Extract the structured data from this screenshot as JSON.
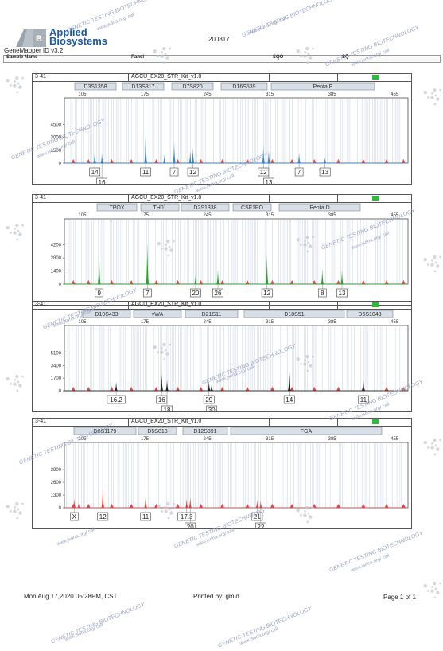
{
  "header": {
    "brand_line1": "Applied",
    "brand_line2": "Biosystems",
    "run_id": "200817",
    "software": "GeneMapper ID v3.2",
    "col_sample_name": "Sample Name",
    "col_panel": "Panel",
    "col_sqo": "SQO",
    "col_sq": "SQ"
  },
  "footer": {
    "date": "Mon Aug 17,2020 05:28PM, CST",
    "printed_by": "Printed by: gmid",
    "page": "Page 1 of 1"
  },
  "watermark": {
    "line1": "GENETIC TESTING BIOTECHNOLOGY",
    "line2": "www.jsdna.org/ call"
  },
  "colors": {
    "blue": "#3a87c8",
    "green": "#2aa52a",
    "black": "#222222",
    "red": "#e6463c",
    "qc_green": "#2bbd3a"
  },
  "chart_data": [
    {
      "type": "line",
      "dye": "blue",
      "sample": "3-41",
      "kit": "AGCU_EX20_STR_Kit_v1.0",
      "x_ticks": [
        "105",
        "175",
        "245",
        "315",
        "385",
        "455"
      ],
      "y_ticks": [
        "4500",
        "3000",
        "1500",
        "0"
      ],
      "ylim": [
        0,
        5000
      ],
      "xlim": [
        85,
        470
      ],
      "loci": [
        "D3S1358",
        "D13S317",
        "D7S820",
        "D16S539",
        "Penta E"
      ],
      "peaks": [
        {
          "x": 119,
          "h": 1500
        },
        {
          "x": 127,
          "h": 1150
        },
        {
          "x": 176,
          "h": 3950
        },
        {
          "x": 197,
          "h": 1000
        },
        {
          "x": 208,
          "h": 2500
        },
        {
          "x": 226,
          "h": 1400
        },
        {
          "x": 229,
          "h": 1800
        },
        {
          "x": 308,
          "h": 2100
        },
        {
          "x": 314,
          "h": 1500
        },
        {
          "x": 348,
          "h": 1200
        },
        {
          "x": 377,
          "h": 650
        }
      ],
      "alleles": [
        {
          "label": "14",
          "x": 119,
          "row": 1
        },
        {
          "label": "16",
          "x": 127,
          "row": 2
        },
        {
          "label": "11",
          "x": 176,
          "row": 1
        },
        {
          "label": "7",
          "x": 208,
          "row": 1
        },
        {
          "label": "12",
          "x": 229,
          "row": 1
        },
        {
          "label": "12",
          "x": 308,
          "row": 1
        },
        {
          "label": "13",
          "x": 314,
          "row": 2
        },
        {
          "label": "7",
          "x": 348,
          "row": 1
        },
        {
          "label": "13",
          "x": 377,
          "row": 1
        }
      ]
    },
    {
      "type": "line",
      "dye": "green",
      "sample": "3-41",
      "kit": "AGCU_EX20_STR_Kit_v1.0",
      "x_ticks": [
        "105",
        "175",
        "245",
        "315",
        "385",
        "455"
      ],
      "y_ticks": [
        "4200",
        "2800",
        "1400",
        "0"
      ],
      "ylim": [
        0,
        4600
      ],
      "xlim": [
        85,
        470
      ],
      "loci": [
        "TPOX",
        "TH01",
        "D2S1338",
        "CSF1PO",
        "Penta D"
      ],
      "peaks": [
        {
          "x": 124,
          "h": 3300
        },
        {
          "x": 178,
          "h": 4600
        },
        {
          "x": 232,
          "h": 1000
        },
        {
          "x": 257,
          "h": 1600
        },
        {
          "x": 312,
          "h": 3100
        },
        {
          "x": 374,
          "h": 1700
        },
        {
          "x": 396,
          "h": 1500
        }
      ],
      "alleles": [
        {
          "label": "9",
          "x": 124,
          "row": 1
        },
        {
          "label": "7",
          "x": 178,
          "row": 1
        },
        {
          "label": "20",
          "x": 232,
          "row": 1
        },
        {
          "label": "26",
          "x": 257,
          "row": 1
        },
        {
          "label": "12",
          "x": 312,
          "row": 1
        },
        {
          "label": "8",
          "x": 374,
          "row": 1
        },
        {
          "label": "13",
          "x": 396,
          "row": 1
        }
      ]
    },
    {
      "type": "line",
      "dye": "black",
      "sample": "3-41",
      "kit": "AGCU_EX20_STR_Kit_v1.0",
      "x_ticks": [
        "105",
        "175",
        "245",
        "315",
        "385",
        "455"
      ],
      "y_ticks": [
        "5100",
        "3400",
        "1700",
        "0"
      ],
      "ylim": [
        0,
        5800
      ],
      "xlim": [
        85,
        470
      ],
      "loci": [
        "D19S433",
        "vWA",
        "D21S11",
        "D18S51",
        "D6S1043"
      ],
      "peaks": [
        {
          "x": 143,
          "h": 1200
        },
        {
          "x": 194,
          "h": 2300
        },
        {
          "x": 200,
          "h": 1500
        },
        {
          "x": 247,
          "h": 1300
        },
        {
          "x": 250,
          "h": 1050
        },
        {
          "x": 337,
          "h": 2400
        },
        {
          "x": 420,
          "h": 1700
        }
      ],
      "alleles": [
        {
          "label": "16.2",
          "x": 143,
          "row": 1
        },
        {
          "label": "16",
          "x": 194,
          "row": 1
        },
        {
          "label": "18",
          "x": 200,
          "row": 2
        },
        {
          "label": "29",
          "x": 247,
          "row": 1
        },
        {
          "label": "30",
          "x": 250,
          "row": 2
        },
        {
          "label": "14",
          "x": 337,
          "row": 1
        },
        {
          "label": "11",
          "x": 420,
          "row": 1
        }
      ]
    },
    {
      "type": "line",
      "dye": "red",
      "sample": "3-41",
      "kit": "AGCU_EX20_STR_Kit_v1.0",
      "x_ticks": [
        "105",
        "175",
        "245",
        "315",
        "385",
        "455"
      ],
      "y_ticks": [
        "3900",
        "2600",
        "1300",
        "0"
      ],
      "ylim": [
        0,
        4400
      ],
      "xlim": [
        85,
        470
      ],
      "loci": [
        "D8S1179",
        "D5S818",
        "D12S391",
        "FGA"
      ],
      "peaks": [
        {
          "x": 96,
          "h": 950
        },
        {
          "x": 101,
          "h": 500
        },
        {
          "x": 128,
          "h": 2200
        },
        {
          "x": 176,
          "h": 1400
        },
        {
          "x": 222,
          "h": 950
        },
        {
          "x": 226,
          "h": 1100
        },
        {
          "x": 301,
          "h": 800
        },
        {
          "x": 305,
          "h": 750
        }
      ],
      "alleles": [
        {
          "label": "X",
          "x": 96,
          "row": 1
        },
        {
          "label": "12",
          "x": 128,
          "row": 1
        },
        {
          "label": "11",
          "x": 176,
          "row": 1
        },
        {
          "label": "17.3",
          "x": 222,
          "row": 1
        },
        {
          "label": "20",
          "x": 226,
          "row": 2
        },
        {
          "label": "21",
          "x": 301,
          "row": 1
        },
        {
          "label": "22",
          "x": 305,
          "row": 2
        }
      ]
    }
  ]
}
